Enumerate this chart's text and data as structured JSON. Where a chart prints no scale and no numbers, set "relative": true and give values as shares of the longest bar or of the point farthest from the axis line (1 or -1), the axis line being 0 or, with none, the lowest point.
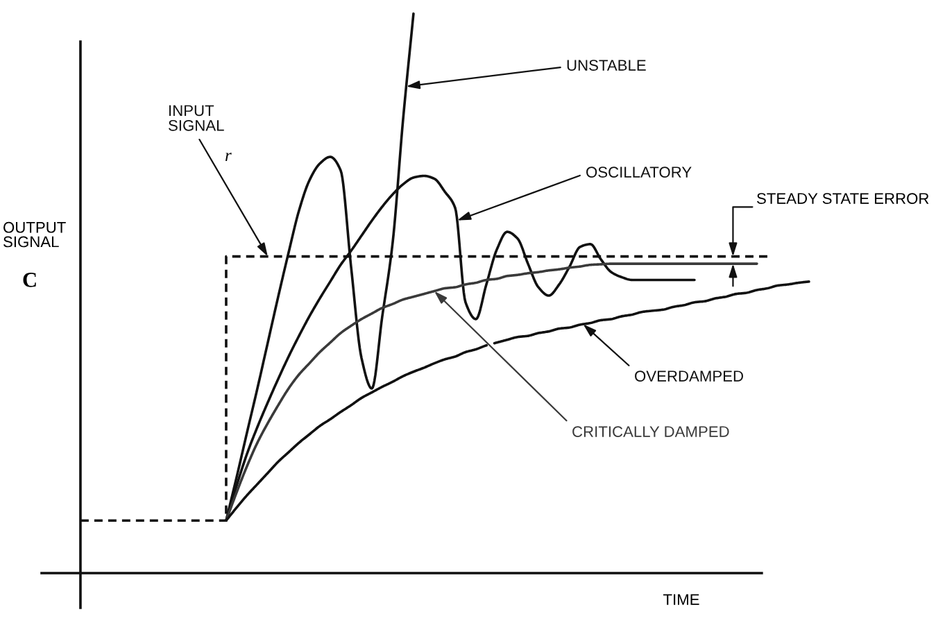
{
  "chart_data": {
    "type": "line",
    "relative": true,
    "xlabel": "TIME",
    "ylabel": "OUTPUT SIGNAL",
    "annotations": [
      "r",
      "C",
      "STEADY STATE ERROR"
    ],
    "categories": [
      null,
      null,
      null,
      null,
      null,
      null,
      null,
      null,
      null,
      null,
      null,
      null,
      null,
      null,
      null,
      null,
      null,
      null,
      null,
      null,
      null,
      null,
      null,
      null,
      null,
      null,
      null,
      null,
      null,
      null,
      null,
      null,
      null,
      null,
      null,
      null,
      null,
      null,
      null,
      null,
      null,
      null,
      null,
      null,
      null,
      null,
      null,
      null,
      null,
      null,
      null,
      null,
      null,
      null,
      null,
      null,
      null,
      null,
      null,
      null,
      null,
      null,
      null,
      null,
      null,
      null,
      null,
      null,
      null,
      null,
      null
    ],
    "series": [
      {
        "name": "INPUT SIGNAL",
        "type": "step",
        "line_style": "dashed",
        "color": "#111111",
        "values": [
          0.094,
          0.094,
          0.094,
          0.094,
          0.094,
          0.094,
          0.094,
          0.094,
          0.094,
          0.094,
          0.094,
          0.094,
          0.094,
          0.094,
          0.566,
          0.566,
          0.566,
          0.566,
          0.566,
          0.566,
          0.566,
          0.566,
          0.566,
          0.566,
          0.566,
          0.566,
          0.566,
          0.566,
          0.566,
          0.566,
          0.566,
          0.566,
          0.566,
          0.566,
          0.566,
          0.566,
          0.566,
          0.566,
          0.566,
          0.566,
          0.566,
          0.566,
          0.566,
          0.566,
          0.566,
          0.566,
          0.566,
          0.566,
          0.566,
          0.566,
          0.566,
          0.566,
          0.566,
          0.566,
          0.566,
          0.566,
          0.566,
          0.566,
          0.566,
          0.566,
          0.566,
          0.566,
          0.566,
          0.566,
          0.566,
          0.566,
          0.566,
          null,
          null,
          null,
          null
        ]
      },
      {
        "name": "UNSTABLE",
        "color": "#111111",
        "values": [
          null,
          null,
          null,
          null,
          null,
          null,
          null,
          null,
          null,
          null,
          null,
          null,
          null,
          null,
          0.094,
          0.171,
          0.251,
          0.33,
          0.412,
          0.494,
          0.573,
          0.648,
          0.702,
          0.732,
          0.744,
          0.72,
          0.548,
          0.385,
          0.33,
          0.459,
          0.591,
          0.811,
          1.0,
          null,
          null,
          null,
          null,
          null,
          null,
          null,
          null,
          null,
          null,
          null,
          null,
          null,
          null,
          null,
          null,
          null,
          null,
          null,
          null,
          null,
          null,
          null,
          null,
          null,
          null,
          null,
          null,
          null,
          null,
          null,
          null,
          null,
          null,
          null,
          null,
          null,
          null
        ]
      },
      {
        "name": "OSCILLATORY",
        "color": "#111111",
        "values": [
          null,
          null,
          null,
          null,
          null,
          null,
          null,
          null,
          null,
          null,
          null,
          null,
          null,
          null,
          0.094,
          0.156,
          0.213,
          0.261,
          0.305,
          0.347,
          0.387,
          0.424,
          0.459,
          0.491,
          0.521,
          0.551,
          0.576,
          0.603,
          0.63,
          0.655,
          0.677,
          0.695,
          0.707,
          0.71,
          0.705,
          0.682,
          0.653,
          0.484,
          0.454,
          0.516,
          0.578,
          0.61,
          0.598,
          0.553,
          0.511,
          0.496,
          0.516,
          0.548,
          0.583,
          0.588,
          0.561,
          0.538,
          0.529,
          0.524,
          0.524,
          0.524,
          0.524,
          0.524,
          0.524,
          0.524,
          null,
          null,
          null,
          null,
          null,
          null,
          null,
          null,
          null,
          null,
          null
        ]
      },
      {
        "name": "CRITICALLY DAMPED",
        "color": "#3a3a3a",
        "values": [
          null,
          null,
          null,
          null,
          null,
          null,
          null,
          null,
          null,
          null,
          null,
          null,
          null,
          null,
          0.094,
          0.144,
          0.191,
          0.233,
          0.268,
          0.3,
          0.33,
          0.355,
          0.375,
          0.395,
          0.412,
          0.429,
          0.442,
          0.454,
          0.464,
          0.474,
          0.481,
          0.489,
          0.494,
          0.499,
          0.504,
          0.509,
          0.511,
          0.516,
          0.519,
          0.524,
          0.526,
          0.531,
          0.533,
          0.536,
          0.538,
          0.541,
          0.543,
          0.546,
          0.548,
          0.551,
          0.552,
          0.553,
          0.553,
          0.553,
          0.553,
          0.553,
          0.553,
          0.553,
          0.553,
          0.553,
          0.553,
          0.553,
          0.553,
          0.553,
          0.553,
          0.553,
          null,
          null,
          null,
          null,
          null
        ]
      },
      {
        "name": "OVERDAMPED",
        "color": "#111111",
        "values": [
          null,
          null,
          null,
          null,
          null,
          null,
          null,
          null,
          null,
          null,
          null,
          null,
          null,
          null,
          0.094,
          0.117,
          0.139,
          0.159,
          0.179,
          0.199,
          0.216,
          0.233,
          0.248,
          0.263,
          0.275,
          0.288,
          0.3,
          0.313,
          0.323,
          0.333,
          0.342,
          0.352,
          0.36,
          0.367,
          0.375,
          0.382,
          0.387,
          0.395,
          0.4,
          0.407,
          0.412,
          0.417,
          0.422,
          0.424,
          0.429,
          0.432,
          0.437,
          0.439,
          0.444,
          0.447,
          0.452,
          0.454,
          0.459,
          0.462,
          0.467,
          0.469,
          0.471,
          0.476,
          0.479,
          0.484,
          0.486,
          0.491,
          0.494,
          0.499,
          0.501,
          0.506,
          0.509,
          0.514,
          0.516,
          0.519,
          0.521
        ]
      }
    ]
  }
}
